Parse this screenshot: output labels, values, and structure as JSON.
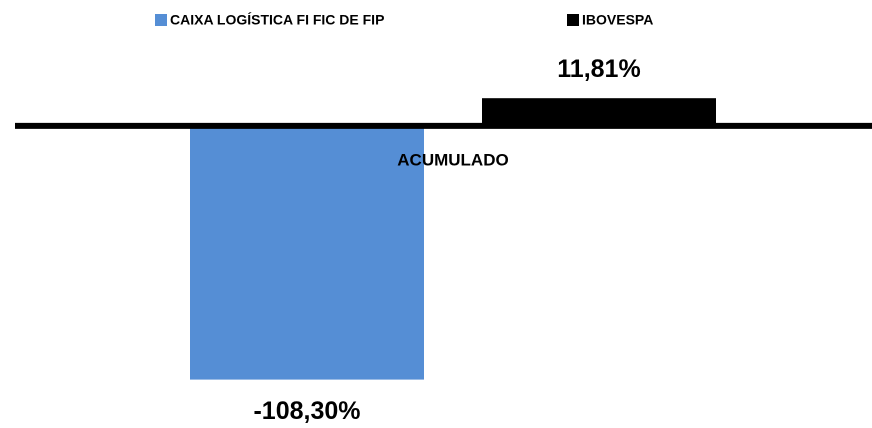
{
  "chart_data": {
    "type": "bar",
    "categories": [
      "ACUMULADO"
    ],
    "series": [
      {
        "name": "CAIXA LOGÍSTICA FI FIC DE FIP",
        "color": "#558ed5",
        "values": [
          -108.3
        ],
        "value_labels": [
          "-108,30%"
        ]
      },
      {
        "name": "IBOVESPA",
        "color": "#000000",
        "values": [
          11.81
        ],
        "value_labels": [
          "11,81%"
        ]
      }
    ],
    "ylim": [
      -120,
      20
    ],
    "legend": "top"
  }
}
